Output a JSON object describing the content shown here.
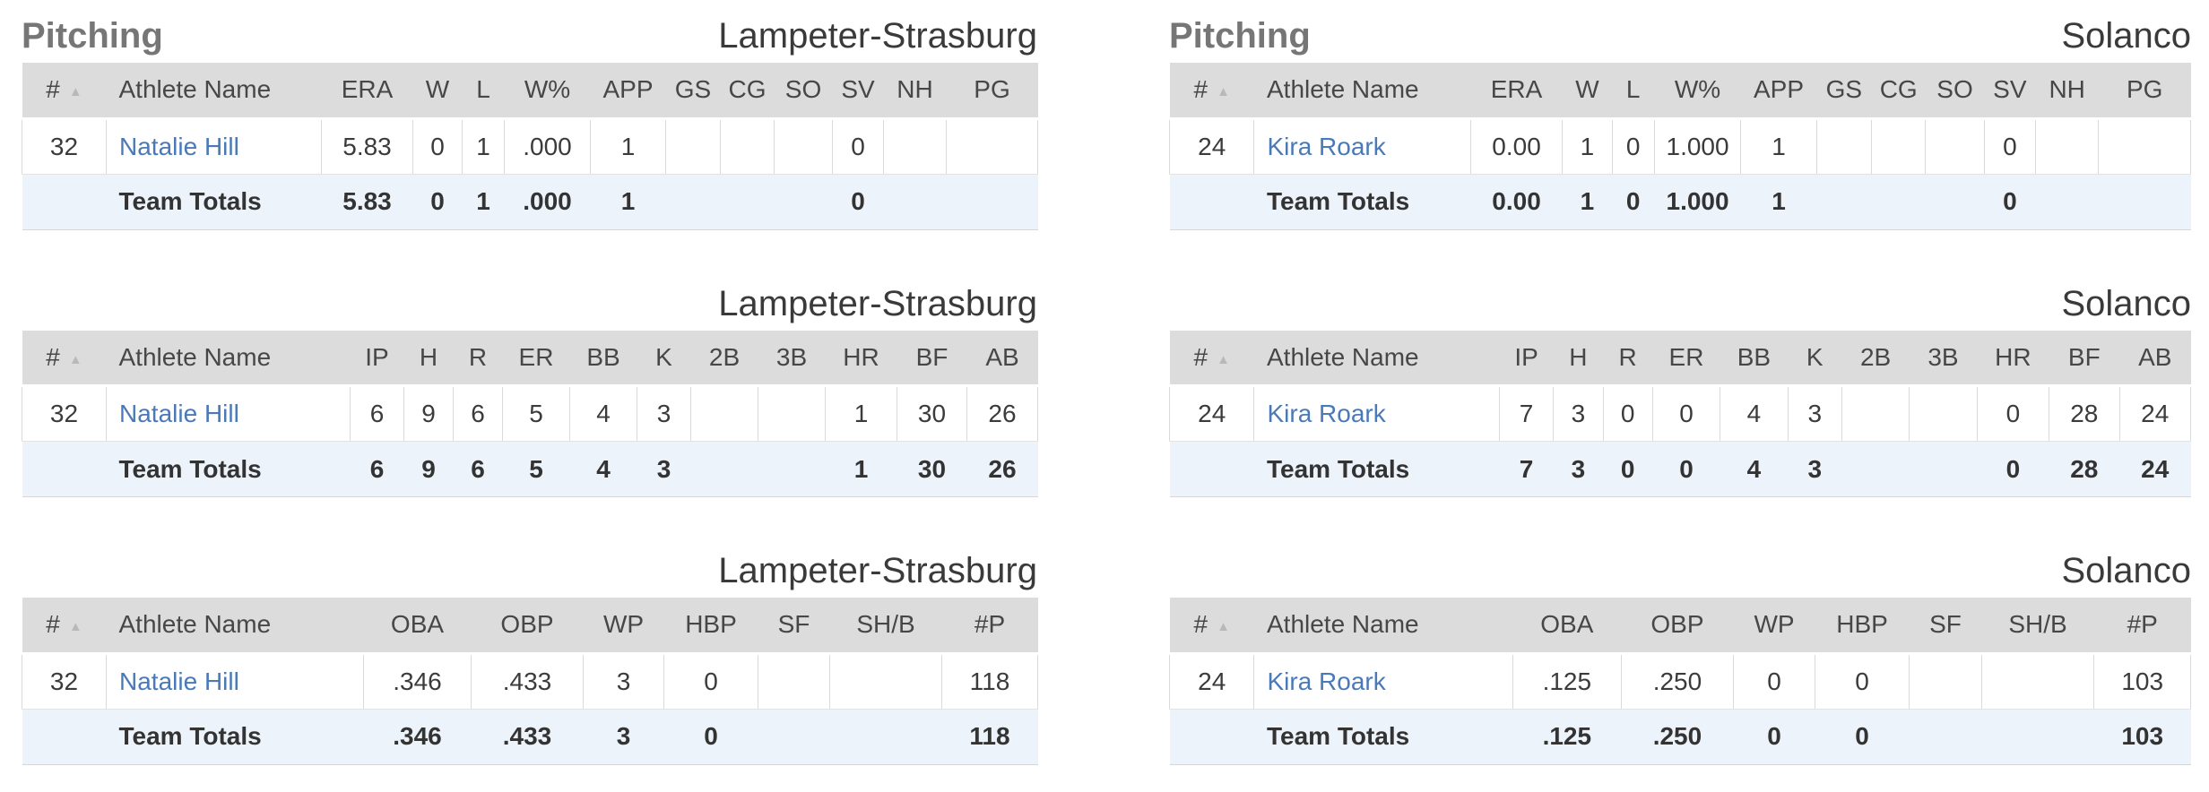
{
  "icons": {
    "sort_ascending": "▲"
  },
  "colors": {
    "link": "#4a79b8",
    "header_bg": "#dcdcdc",
    "totals_bg": "#edf3fa",
    "section_title": "#767676"
  },
  "panels": [
    {
      "section_title": "Pitching",
      "team": "Lampeter-Strasburg",
      "tables": [
        {
          "columns": [
            "#",
            "Athlete Name",
            "ERA",
            "W",
            "L",
            "W%",
            "APP",
            "GS",
            "CG",
            "SO",
            "SV",
            "NH",
            "PG"
          ],
          "rows": [
            {
              "number": "32",
              "name": "Natalie Hill",
              "stats": [
                "5.83",
                "0",
                "1",
                ".000",
                "1",
                "",
                "",
                "",
                "0",
                "",
                ""
              ]
            }
          ],
          "totals_label": "Team Totals",
          "totals": [
            "5.83",
            "0",
            "1",
            ".000",
            "1",
            "",
            "",
            "",
            "0",
            "",
            ""
          ]
        },
        {
          "columns": [
            "#",
            "Athlete Name",
            "IP",
            "H",
            "R",
            "ER",
            "BB",
            "K",
            "2B",
            "3B",
            "HR",
            "BF",
            "AB"
          ],
          "rows": [
            {
              "number": "32",
              "name": "Natalie Hill",
              "stats": [
                "6",
                "9",
                "6",
                "5",
                "4",
                "3",
                "",
                "",
                "1",
                "30",
                "26"
              ]
            }
          ],
          "totals_label": "Team Totals",
          "totals": [
            "6",
            "9",
            "6",
            "5",
            "4",
            "3",
            "",
            "",
            "1",
            "30",
            "26"
          ]
        },
        {
          "columns": [
            "#",
            "Athlete Name",
            "OBA",
            "OBP",
            "WP",
            "HBP",
            "SF",
            "SH/B",
            "#P"
          ],
          "rows": [
            {
              "number": "32",
              "name": "Natalie Hill",
              "stats": [
                ".346",
                ".433",
                "3",
                "0",
                "",
                "",
                "118"
              ]
            }
          ],
          "totals_label": "Team Totals",
          "totals": [
            ".346",
            ".433",
            "3",
            "0",
            "",
            "",
            "118"
          ]
        }
      ]
    },
    {
      "section_title": "Pitching",
      "team": "Solanco",
      "tables": [
        {
          "columns": [
            "#",
            "Athlete Name",
            "ERA",
            "W",
            "L",
            "W%",
            "APP",
            "GS",
            "CG",
            "SO",
            "SV",
            "NH",
            "PG"
          ],
          "rows": [
            {
              "number": "24",
              "name": "Kira Roark",
              "stats": [
                "0.00",
                "1",
                "0",
                "1.000",
                "1",
                "",
                "",
                "",
                "0",
                "",
                ""
              ]
            }
          ],
          "totals_label": "Team Totals",
          "totals": [
            "0.00",
            "1",
            "0",
            "1.000",
            "1",
            "",
            "",
            "",
            "0",
            "",
            ""
          ]
        },
        {
          "columns": [
            "#",
            "Athlete Name",
            "IP",
            "H",
            "R",
            "ER",
            "BB",
            "K",
            "2B",
            "3B",
            "HR",
            "BF",
            "AB"
          ],
          "rows": [
            {
              "number": "24",
              "name": "Kira Roark",
              "stats": [
                "7",
                "3",
                "0",
                "0",
                "4",
                "3",
                "",
                "",
                "0",
                "28",
                "24"
              ]
            }
          ],
          "totals_label": "Team Totals",
          "totals": [
            "7",
            "3",
            "0",
            "0",
            "4",
            "3",
            "",
            "",
            "0",
            "28",
            "24"
          ]
        },
        {
          "columns": [
            "#",
            "Athlete Name",
            "OBA",
            "OBP",
            "WP",
            "HBP",
            "SF",
            "SH/B",
            "#P"
          ],
          "rows": [
            {
              "number": "24",
              "name": "Kira Roark",
              "stats": [
                ".125",
                ".250",
                "0",
                "0",
                "",
                "",
                "103"
              ]
            }
          ],
          "totals_label": "Team Totals",
          "totals": [
            ".125",
            ".250",
            "0",
            "0",
            "",
            "",
            "103"
          ]
        }
      ]
    }
  ]
}
